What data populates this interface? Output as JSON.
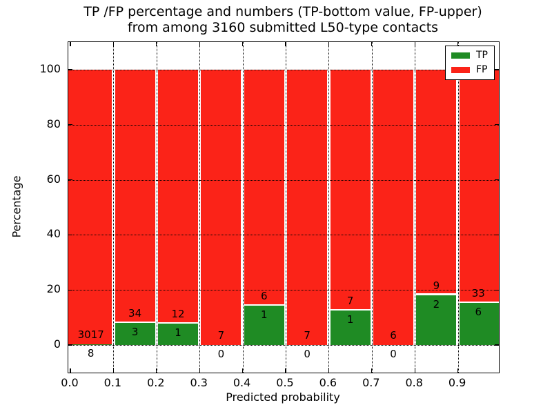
{
  "chart_data": {
    "type": "bar",
    "stacked": true,
    "unit": "percent",
    "title_lines": [
      "TP /FP percentage and numbers (TP-bottom value, FP-upper)",
      "from among 3160 submitted L50-type contacts"
    ],
    "total_contacts": 3160,
    "xlabel": "Predicted probability",
    "ylabel": "Percentage",
    "xlim": [
      0.0,
      1.0
    ],
    "ylim": [
      -10,
      110
    ],
    "grid": true,
    "x_ticks": [
      0.0,
      0.1,
      0.2,
      0.3,
      0.4,
      0.5,
      0.6,
      0.7,
      0.8,
      0.9
    ],
    "x_tick_labels": [
      "0.0",
      "0.1",
      "0.2",
      "0.3",
      "0.4",
      "0.5",
      "0.6",
      "0.7",
      "0.8",
      "0.9"
    ],
    "y_ticks": [
      0,
      20,
      40,
      60,
      80,
      100
    ],
    "y_tick_labels": [
      "0",
      "20",
      "40",
      "60",
      "80",
      "100"
    ],
    "categories": [
      "0.0-0.1",
      "0.1-0.2",
      "0.2-0.3",
      "0.3-0.4",
      "0.4-0.5",
      "0.5-0.6",
      "0.6-0.7",
      "0.7-0.8",
      "0.8-0.9",
      "0.9-1.0"
    ],
    "series": [
      {
        "name": "TP",
        "color": "#1f8b24",
        "values": [
          8,
          3,
          1,
          0,
          1,
          0,
          1,
          0,
          2,
          6
        ]
      },
      {
        "name": "FP",
        "color": "#fb2318",
        "values": [
          3017,
          34,
          12,
          7,
          6,
          7,
          7,
          6,
          9,
          33
        ]
      }
    ],
    "legend": {
      "position": "upper right",
      "entries": [
        {
          "label": "TP",
          "color": "#1f8b24"
        },
        {
          "label": "FP",
          "color": "#fb2318"
        }
      ]
    }
  }
}
